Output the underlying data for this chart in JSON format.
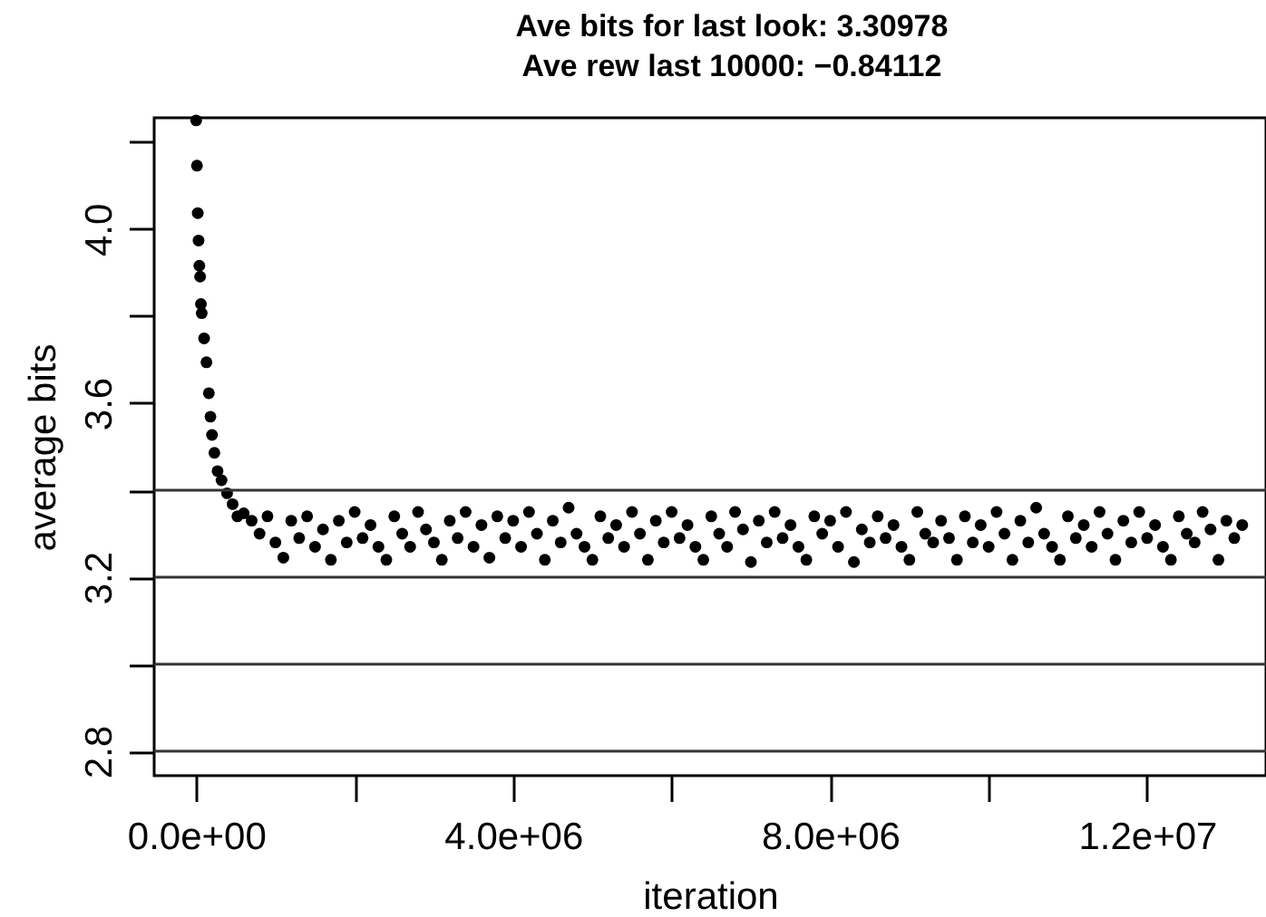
{
  "chart_data": {
    "type": "scatter",
    "title": "Ave bits for last look: 3.30978",
    "subtitle": "Ave rew last 10000: −0.84112",
    "xlabel": "iteration",
    "ylabel": "average bits",
    "x": [
      0,
      10000,
      20000,
      30000,
      40000,
      50000,
      60000,
      70000,
      100000,
      130000,
      160000,
      180000,
      200000,
      230000,
      270000,
      320000,
      390000,
      460000,
      520000,
      600000,
      700000,
      800000,
      900000,
      1000000,
      1100000,
      1200000,
      1300000,
      1400000,
      1500000,
      1600000,
      1700000,
      1800000,
      1900000,
      2000000,
      2100000,
      2200000,
      2300000,
      2400000,
      2500000,
      2600000,
      2700000,
      2800000,
      2900000,
      3000000,
      3100000,
      3200000,
      3300000,
      3400000,
      3500000,
      3600000,
      3700000,
      3800000,
      3900000,
      4000000,
      4100000,
      4200000,
      4300000,
      4400000,
      4500000,
      4600000,
      4700000,
      4800000,
      4900000,
      5000000,
      5100000,
      5200000,
      5300000,
      5400000,
      5500000,
      5600000,
      5700000,
      5800000,
      5900000,
      6000000,
      6100000,
      6200000,
      6300000,
      6400000,
      6500000,
      6600000,
      6700000,
      6800000,
      6900000,
      7000000,
      7100000,
      7200000,
      7300000,
      7400000,
      7500000,
      7600000,
      7700000,
      7800000,
      7900000,
      8000000,
      8100000,
      8200000,
      8300000,
      8400000,
      8500000,
      8600000,
      8700000,
      8800000,
      8900000,
      9000000,
      9100000,
      9200000,
      9300000,
      9400000,
      9500000,
      9600000,
      9700000,
      9800000,
      9900000,
      10000000,
      10100000,
      10200000,
      10300000,
      10400000,
      10500000,
      10600000,
      10700000,
      10800000,
      10900000,
      11000000,
      11100000,
      11200000,
      11300000,
      11400000,
      11500000,
      11600000,
      11700000,
      11800000,
      11900000,
      12000000,
      12100000,
      12200000,
      12300000,
      12400000,
      12500000,
      12600000,
      12700000,
      12800000,
      12900000,
      13000000,
      13100000,
      13200000
    ],
    "series": [
      {
        "color": "#000000",
        "values": [
          4.25,
          4.146,
          4.037,
          3.974,
          3.916,
          3.891,
          3.828,
          3.807,
          3.749,
          3.694,
          3.623,
          3.569,
          3.527,
          3.486,
          3.444,
          3.423,
          3.393,
          3.368,
          3.34,
          3.347,
          3.33,
          3.3,
          3.34,
          3.28,
          3.245,
          3.33,
          3.29,
          3.34,
          3.27,
          3.31,
          3.24,
          3.33,
          3.28,
          3.35,
          3.29,
          3.32,
          3.27,
          3.24,
          3.34,
          3.3,
          3.27,
          3.35,
          3.31,
          3.28,
          3.24,
          3.33,
          3.29,
          3.35,
          3.27,
          3.32,
          3.245,
          3.34,
          3.29,
          3.33,
          3.27,
          3.35,
          3.3,
          3.24,
          3.33,
          3.28,
          3.36,
          3.3,
          3.27,
          3.24,
          3.34,
          3.29,
          3.32,
          3.27,
          3.35,
          3.3,
          3.24,
          3.33,
          3.28,
          3.35,
          3.29,
          3.32,
          3.27,
          3.24,
          3.34,
          3.3,
          3.27,
          3.35,
          3.31,
          3.235,
          3.33,
          3.28,
          3.35,
          3.29,
          3.32,
          3.27,
          3.24,
          3.34,
          3.3,
          3.33,
          3.27,
          3.35,
          3.235,
          3.31,
          3.28,
          3.34,
          3.29,
          3.32,
          3.27,
          3.24,
          3.35,
          3.3,
          3.28,
          3.33,
          3.29,
          3.24,
          3.34,
          3.28,
          3.32,
          3.27,
          3.35,
          3.3,
          3.24,
          3.33,
          3.28,
          3.36,
          3.3,
          3.27,
          3.24,
          3.34,
          3.29,
          3.32,
          3.27,
          3.35,
          3.3,
          3.24,
          3.33,
          3.28,
          3.35,
          3.29,
          3.32,
          3.27,
          3.24,
          3.34,
          3.3,
          3.28,
          3.35,
          3.31,
          3.24,
          3.33,
          3.29,
          3.32
        ]
      }
    ],
    "xlim": [
      -530000,
      13500000
    ],
    "xticks": [
      {
        "value": 0,
        "label": "0.0e+00"
      },
      {
        "value": 2000000,
        "label": null
      },
      {
        "value": 4000000,
        "label": "4.0e+06"
      },
      {
        "value": 6000000,
        "label": null
      },
      {
        "value": 8000000,
        "label": "8.0e+06"
      },
      {
        "value": 10000000,
        "label": null
      },
      {
        "value": 12000000,
        "label": "1.2e+07"
      }
    ],
    "ylim": [
      2.744,
      4.256
    ],
    "yticks": [
      2.8,
      {
        "value": 3.0,
        "label": null
      },
      3.2,
      {
        "value": 3.4,
        "label": null
      },
      3.6,
      {
        "value": 3.8,
        "label": null
      },
      {
        "value": 4.0,
        "label": "4.0"
      },
      {
        "value": 4.2,
        "label": null
      }
    ],
    "ref_lines": [
      {
        "axis": "y",
        "value": 3.4,
        "color": "#333333"
      },
      {
        "axis": "y",
        "value": 3.2,
        "color": "#333333"
      },
      {
        "axis": "y",
        "value": 3.0,
        "color": "#333333"
      },
      {
        "axis": "y",
        "value": 2.8,
        "color": "#333333"
      }
    ],
    "marker": "circle",
    "grid": false
  }
}
